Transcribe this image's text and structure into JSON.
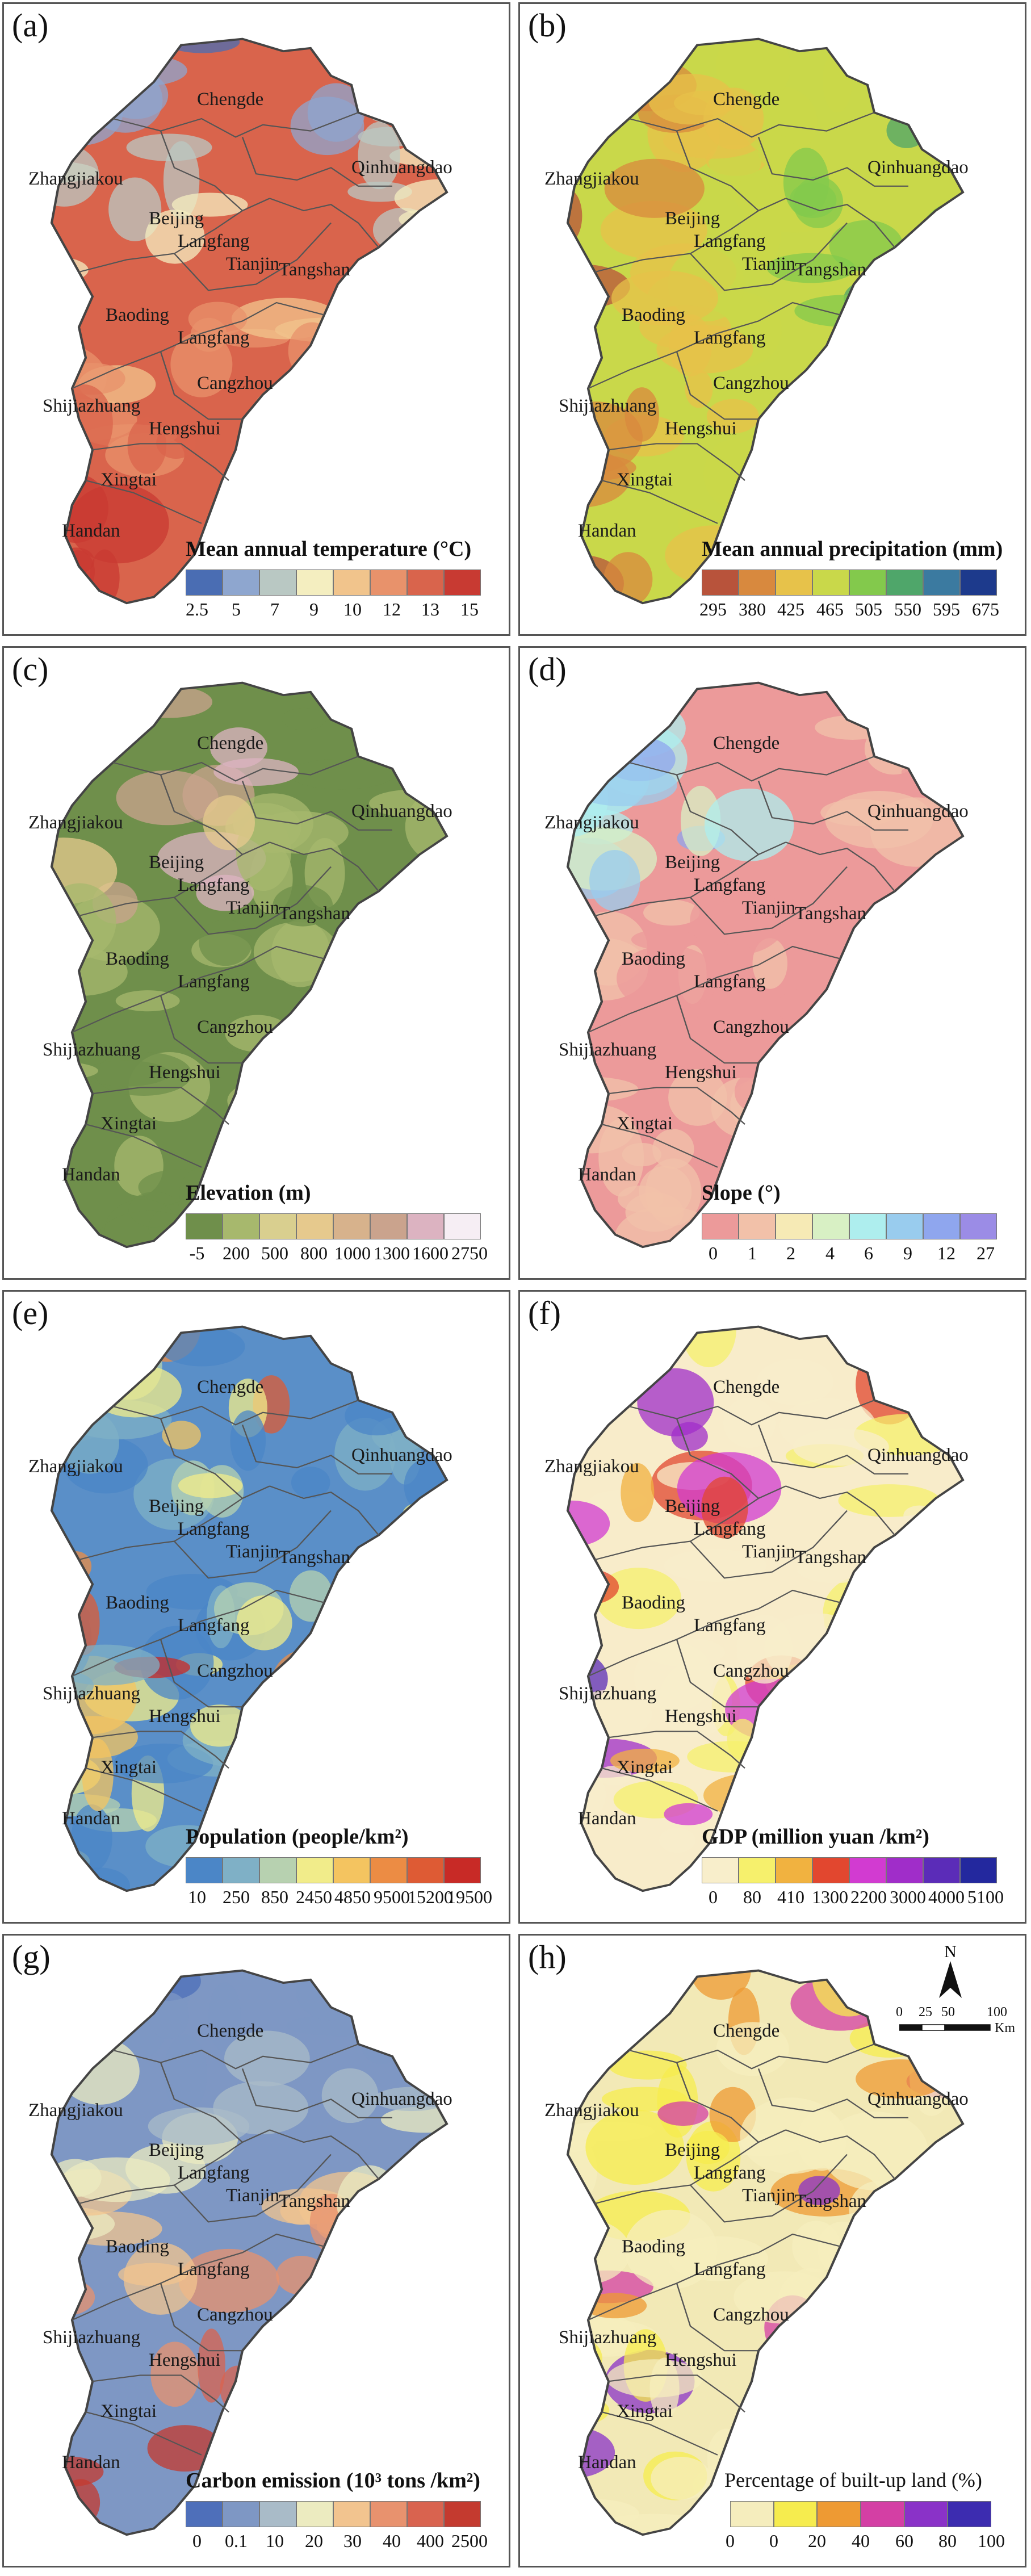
{
  "units_note": "",
  "panels": [
    {
      "id": "a",
      "label": "(a)",
      "legend_title": "Mean annual temperature (°C)",
      "ticks": [
        "2.5",
        "5",
        "7",
        "9",
        "10",
        "12",
        "13",
        "15"
      ],
      "colors": [
        "#4a6db3",
        "#8ea6cf",
        "#b9c8c3",
        "#f4eec0",
        "#f1c48c",
        "#e8926b",
        "#d9644c",
        "#c83a32"
      ],
      "base": "#d9644c"
    },
    {
      "id": "b",
      "label": "(b)",
      "legend_title": "Mean annual precipitation (mm)",
      "ticks": [
        "295",
        "380",
        "425",
        "465",
        "505",
        "550",
        "595",
        "675"
      ],
      "colors": [
        "#b8533b",
        "#d8893e",
        "#e7c24a",
        "#c9d84a",
        "#83c94c",
        "#4fa66a",
        "#3b7aa0",
        "#1d3a8c"
      ],
      "base": "#c9d84a"
    },
    {
      "id": "c",
      "label": "(c)",
      "legend_title": "Elevation (m)",
      "ticks": [
        "-5",
        "200",
        "500",
        "800",
        "1000",
        "1300",
        "1600",
        "2750"
      ],
      "colors": [
        "#6f8f4b",
        "#a7b86d",
        "#d9cf8f",
        "#e6c98d",
        "#d7b28c",
        "#caa38d",
        "#dcb3c1",
        "#f6eef4"
      ],
      "base": "#6f8f4b"
    },
    {
      "id": "d",
      "label": "(d)",
      "legend_title": "Slope (°)",
      "ticks": [
        "0",
        "1",
        "2",
        "4",
        "6",
        "9",
        "12",
        "27"
      ],
      "colors": [
        "#ec9a9a",
        "#f2c1a9",
        "#f6eab5",
        "#d8f0c4",
        "#aeeeee",
        "#99ccee",
        "#8fa6ee",
        "#9b8ce6"
      ],
      "base": "#ec9a9a"
    },
    {
      "id": "e",
      "label": "(e)",
      "legend_title": "Population (people/km²)",
      "ticks": [
        "10",
        "250",
        "850",
        "2450",
        "4850",
        "9500",
        "15200",
        "19500"
      ],
      "colors": [
        "#4b86c7",
        "#7fb0c6",
        "#b7d1b0",
        "#f1ec8a",
        "#f4c460",
        "#ec8c44",
        "#de5b34",
        "#c82a26"
      ],
      "base": "#5a8fc8"
    },
    {
      "id": "f",
      "label": "(f)",
      "legend_title": "GDP (million yuan /km²)",
      "ticks": [
        "0",
        "80",
        "410",
        "1300",
        "2200",
        "3000",
        "4000",
        "5100"
      ],
      "colors": [
        "#f8eecb",
        "#f6f06c",
        "#f1b240",
        "#e2472f",
        "#d23bd1",
        "#a02dc9",
        "#5b2cb8",
        "#23289e"
      ],
      "base": "#f8ecca"
    },
    {
      "id": "g",
      "label": "(g)",
      "legend_title": "Carbon emission (10³ tons /km²)",
      "ticks": [
        "0",
        "0.1",
        "10",
        "20",
        "30",
        "40",
        "400",
        "2500"
      ],
      "colors": [
        "#4e6fba",
        "#7e97c4",
        "#a9bbc8",
        "#ecebc0",
        "#f2c48f",
        "#e8926e",
        "#d9634f",
        "#c43a2f"
      ],
      "base": "#7e97c4"
    },
    {
      "id": "h",
      "label": "(h)",
      "legend_title": "Percentage of built-up land (%)",
      "ticks": [
        "0",
        "0",
        "20",
        "40",
        "60",
        "80",
        "100"
      ],
      "colors": [
        "#f5edbd",
        "#f6ec4e",
        "#ee9a33",
        "#d43fa4",
        "#8a32c8",
        "#3c2cb0"
      ],
      "base": "#f2e9b6"
    }
  ],
  "regions": [
    "Chengde",
    "Zhangjiakou",
    "Qinhuangdao",
    "Beijing",
    "Langfang",
    "Tianjin",
    "Tangshan",
    "Baoding",
    "Langfang",
    "Cangzhou",
    "Shijiazhuang",
    "Hengshui",
    "Xingtai",
    "Handan"
  ],
  "compass": {
    "north": "N"
  },
  "scalebar": {
    "labels": [
      "0",
      "25",
      "50",
      "100"
    ],
    "unit": "Km"
  }
}
